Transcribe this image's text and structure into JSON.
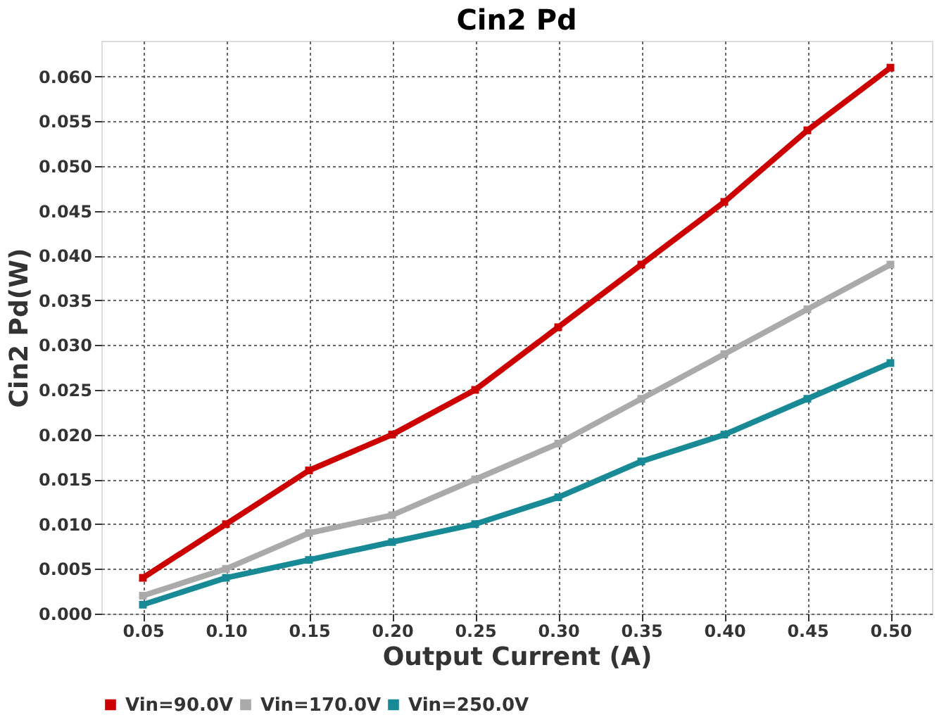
{
  "chart_data": {
    "type": "line",
    "title": "Cin2 Pd",
    "xlabel": "Output Current (A)",
    "ylabel": "Cin2 Pd(W)",
    "categories": [
      "0.05",
      "0.10",
      "0.15",
      "0.20",
      "0.25",
      "0.30",
      "0.35",
      "0.40",
      "0.45",
      "0.50"
    ],
    "series": [
      {
        "name": "Vin=90.0V",
        "color": "#cc0000",
        "values": [
          0.004,
          0.01,
          0.016,
          0.02,
          0.025,
          0.032,
          0.039,
          0.046,
          0.054,
          0.061
        ]
      },
      {
        "name": "Vin=170.0V",
        "color": "#aaaaaa",
        "values": [
          0.002,
          0.005,
          0.009,
          0.011,
          0.015,
          0.019,
          0.024,
          0.029,
          0.034,
          0.039
        ]
      },
      {
        "name": "Vin=250.0V",
        "color": "#178a96",
        "values": [
          0.001,
          0.004,
          0.006,
          0.008,
          0.01,
          0.013,
          0.017,
          0.02,
          0.024,
          0.028
        ]
      }
    ],
    "ylim": [
      0,
      0.064
    ],
    "yticks": [
      {
        "value": 0,
        "label": "0.000"
      },
      {
        "value": 0.005,
        "label": "0.005"
      },
      {
        "value": 0.01,
        "label": "0.010"
      },
      {
        "value": 0.015,
        "label": "0.015"
      },
      {
        "value": 0.02,
        "label": "0.020"
      },
      {
        "value": 0.025,
        "label": "0.025"
      },
      {
        "value": 0.03,
        "label": "0.030"
      },
      {
        "value": 0.035,
        "label": "0.035"
      },
      {
        "value": 0.04,
        "label": "0.040"
      },
      {
        "value": 0.045,
        "label": "0.045"
      },
      {
        "value": 0.05,
        "label": "0.050"
      },
      {
        "value": 0.055,
        "label": "0.055"
      },
      {
        "value": 0.06,
        "label": "0.060"
      }
    ],
    "grid": true,
    "legend": "bottom",
    "marker": "square",
    "line_style": "solid"
  }
}
